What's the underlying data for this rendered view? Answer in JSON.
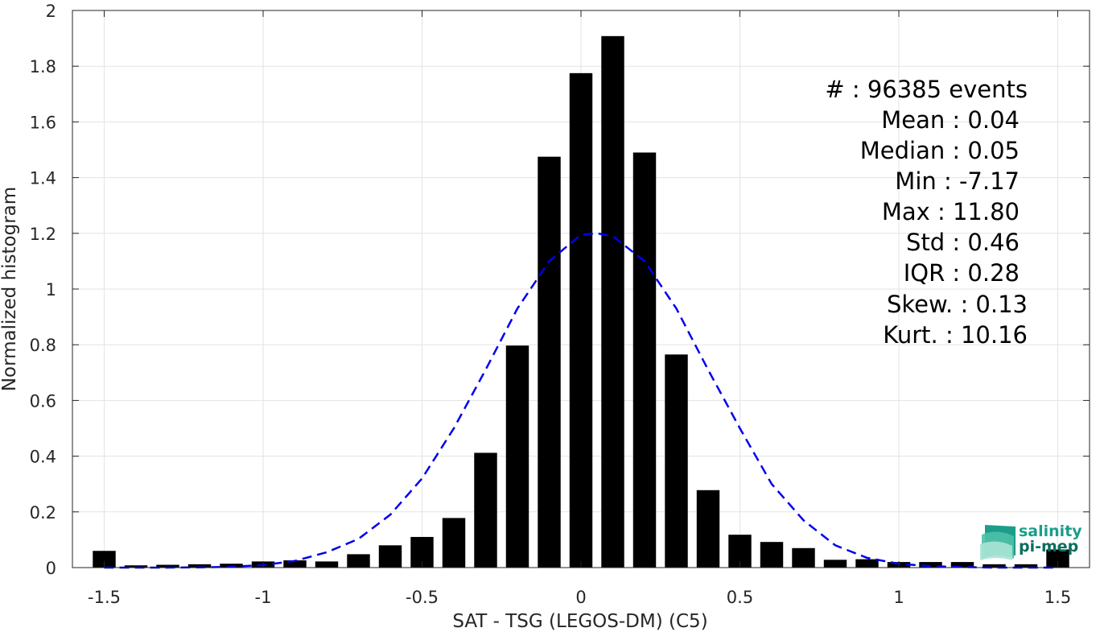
{
  "chart_data": {
    "type": "bar",
    "xlabel": "SAT - TSG (LEGOS-DM) (C5)",
    "ylabel": "Normalized histogram",
    "xlim": [
      -1.6,
      1.6
    ],
    "ylim": [
      0,
      2
    ],
    "grid": true,
    "xticks": [
      -1.5,
      -1,
      -0.5,
      0,
      0.5,
      1,
      1.5
    ],
    "xtick_labels": [
      "-1.5",
      "-1",
      "-0.5",
      "0",
      "0.5",
      "1",
      "1.5"
    ],
    "yticks": [
      0,
      0.2,
      0.4,
      0.6,
      0.8,
      1,
      1.2,
      1.4,
      1.6,
      1.8,
      2
    ],
    "ytick_labels": [
      "0",
      "0.2",
      "0.4",
      "0.6",
      "0.8",
      "1",
      "1.2",
      "1.4",
      "1.6",
      "1.8",
      "2"
    ],
    "bin_width": 0.1,
    "bars": {
      "x": [
        -1.5,
        -1.4,
        -1.3,
        -1.2,
        -1.1,
        -1.0,
        -0.9,
        -0.8,
        -0.7,
        -0.6,
        -0.5,
        -0.4,
        -0.3,
        -0.2,
        -0.1,
        0.0,
        0.1,
        0.2,
        0.3,
        0.4,
        0.5,
        0.6,
        0.7,
        0.8,
        0.9,
        1.0,
        1.1,
        1.2,
        1.3,
        1.4,
        1.5
      ],
      "values": [
        0.06,
        0.008,
        0.01,
        0.012,
        0.014,
        0.022,
        0.026,
        0.022,
        0.048,
        0.08,
        0.11,
        0.178,
        0.412,
        0.797,
        1.475,
        1.775,
        1.908,
        1.49,
        0.765,
        0.278,
        0.118,
        0.092,
        0.07,
        0.028,
        0.03,
        0.02,
        0.02,
        0.02,
        0.012,
        0.012,
        0.065
      ],
      "color": "#000000"
    },
    "fit_curve": {
      "style": "dashed",
      "color": "#0000ee",
      "x": [
        -1.5,
        -1.4,
        -1.3,
        -1.2,
        -1.1,
        -1.0,
        -0.9,
        -0.8,
        -0.7,
        -0.6,
        -0.5,
        -0.4,
        -0.3,
        -0.2,
        -0.1,
        0.0,
        0.05,
        0.1,
        0.2,
        0.3,
        0.4,
        0.5,
        0.6,
        0.7,
        0.8,
        0.9,
        1.0,
        1.1,
        1.2,
        1.3,
        1.4,
        1.5
      ],
      "values": [
        0.0,
        0.0,
        0.0,
        0.001,
        0.003,
        0.009,
        0.024,
        0.055,
        0.103,
        0.19,
        0.32,
        0.5,
        0.71,
        0.93,
        1.1,
        1.195,
        1.2,
        1.19,
        1.1,
        0.93,
        0.71,
        0.5,
        0.3,
        0.17,
        0.08,
        0.035,
        0.014,
        0.005,
        0.002,
        0.0,
        0.0,
        0.0
      ]
    },
    "annotations": [
      "#  : 96385 events",
      "Mean : 0.04",
      "Median : 0.05",
      "Min : -7.17",
      "Max : 11.80",
      "Std : 0.46",
      "IQR : 0.28",
      "Skew. : 0.13",
      "Kurt. : 10.16"
    ]
  },
  "logo": {
    "line1": "salinity",
    "line2": "pi-mep",
    "colors": [
      "#1a9e8a",
      "#7fd3c0",
      "#0b6e5f"
    ]
  }
}
